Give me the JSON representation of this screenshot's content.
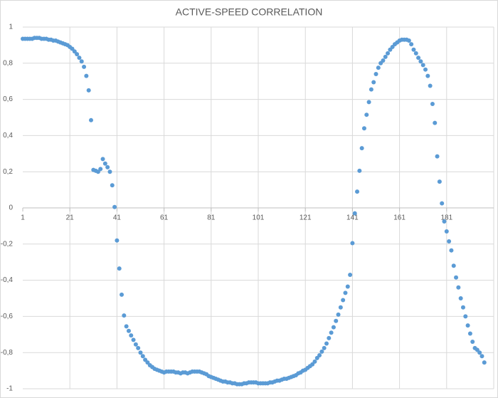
{
  "chart_data": {
    "type": "scatter",
    "title": "ACTIVE-SPEED CORRELATION",
    "color": "#5b9bd5",
    "grid": true,
    "xlim": [
      1,
      201
    ],
    "xticks": [
      1,
      21,
      41,
      61,
      81,
      101,
      121,
      141,
      161,
      181
    ],
    "ylim": [
      -1,
      1
    ],
    "yticks": [
      1,
      {
        "value": 0.8,
        "label": "0,8"
      },
      {
        "value": 0.6,
        "label": "0,6"
      },
      {
        "value": 0.4,
        "label": "0,4"
      },
      {
        "value": 0.2,
        "label": "0,2"
      },
      0,
      {
        "value": -0.2,
        "label": "-0,2"
      },
      {
        "value": -0.4,
        "label": "-0,4"
      },
      {
        "value": -0.6,
        "label": "-0,6"
      },
      {
        "value": -0.8,
        "label": "-0,8"
      },
      -1
    ],
    "x": [
      1,
      2,
      3,
      4,
      5,
      6,
      7,
      8,
      9,
      10,
      11,
      12,
      13,
      14,
      15,
      16,
      17,
      18,
      19,
      20,
      21,
      22,
      23,
      24,
      25,
      26,
      27,
      28,
      29,
      30,
      31,
      32,
      33,
      34,
      35,
      36,
      37,
      38,
      39,
      40,
      41,
      42,
      43,
      44,
      45,
      46,
      47,
      48,
      49,
      50,
      51,
      52,
      53,
      54,
      55,
      56,
      57,
      58,
      59,
      60,
      61,
      62,
      63,
      64,
      65,
      66,
      67,
      68,
      69,
      70,
      71,
      72,
      73,
      74,
      75,
      76,
      77,
      78,
      79,
      80,
      81,
      82,
      83,
      84,
      85,
      86,
      87,
      88,
      89,
      90,
      91,
      92,
      93,
      94,
      95,
      96,
      97,
      98,
      99,
      100,
      101,
      102,
      103,
      104,
      105,
      106,
      107,
      108,
      109,
      110,
      111,
      112,
      113,
      114,
      115,
      116,
      117,
      118,
      119,
      120,
      121,
      122,
      123,
      124,
      125,
      126,
      127,
      128,
      129,
      130,
      131,
      132,
      133,
      134,
      135,
      136,
      137,
      138,
      139,
      140,
      141,
      142,
      143,
      144,
      145,
      146,
      147,
      148,
      149,
      150,
      151,
      152,
      153,
      154,
      155,
      156,
      157,
      158,
      159,
      160,
      161,
      162,
      163,
      164,
      165,
      166,
      167,
      168,
      169,
      170,
      171,
      172,
      173,
      174,
      175,
      176,
      177,
      178,
      179,
      180,
      181,
      182,
      183,
      184,
      185,
      186,
      187,
      188,
      189,
      190,
      191,
      192,
      193,
      194,
      195,
      196,
      197
    ],
    "values": [
      0.935,
      0.935,
      0.935,
      0.935,
      0.935,
      0.94,
      0.94,
      0.94,
      0.935,
      0.935,
      0.935,
      0.93,
      0.93,
      0.925,
      0.925,
      0.92,
      0.915,
      0.91,
      0.905,
      0.9,
      0.89,
      0.88,
      0.865,
      0.85,
      0.83,
      0.81,
      0.78,
      0.73,
      0.65,
      0.485,
      0.21,
      0.205,
      0.2,
      0.215,
      0.27,
      0.245,
      0.225,
      0.2,
      0.125,
      0.005,
      -0.18,
      -0.335,
      -0.48,
      -0.595,
      -0.655,
      -0.68,
      -0.705,
      -0.73,
      -0.755,
      -0.775,
      -0.8,
      -0.82,
      -0.84,
      -0.855,
      -0.87,
      -0.88,
      -0.89,
      -0.895,
      -0.9,
      -0.905,
      -0.91,
      -0.905,
      -0.905,
      -0.905,
      -0.905,
      -0.91,
      -0.91,
      -0.915,
      -0.91,
      -0.91,
      -0.915,
      -0.91,
      -0.905,
      -0.905,
      -0.905,
      -0.905,
      -0.91,
      -0.915,
      -0.92,
      -0.93,
      -0.935,
      -0.94,
      -0.945,
      -0.95,
      -0.955,
      -0.96,
      -0.96,
      -0.965,
      -0.965,
      -0.97,
      -0.97,
      -0.975,
      -0.975,
      -0.975,
      -0.97,
      -0.97,
      -0.965,
      -0.965,
      -0.965,
      -0.965,
      -0.97,
      -0.97,
      -0.97,
      -0.97,
      -0.97,
      -0.965,
      -0.965,
      -0.96,
      -0.955,
      -0.955,
      -0.95,
      -0.945,
      -0.945,
      -0.94,
      -0.935,
      -0.93,
      -0.925,
      -0.915,
      -0.91,
      -0.9,
      -0.895,
      -0.885,
      -0.875,
      -0.865,
      -0.85,
      -0.83,
      -0.815,
      -0.795,
      -0.775,
      -0.75,
      -0.72,
      -0.69,
      -0.66,
      -0.625,
      -0.59,
      -0.55,
      -0.51,
      -0.47,
      -0.435,
      -0.37,
      -0.195,
      -0.03,
      0.09,
      0.205,
      0.33,
      0.44,
      0.515,
      0.585,
      0.655,
      0.695,
      0.74,
      0.775,
      0.8,
      0.815,
      0.835,
      0.855,
      0.875,
      0.89,
      0.905,
      0.915,
      0.925,
      0.93,
      0.93,
      0.93,
      0.925,
      0.905,
      0.875,
      0.855,
      0.83,
      0.81,
      0.79,
      0.765,
      0.73,
      0.675,
      0.575,
      0.47,
      0.285,
      0.145,
      0.025,
      -0.075,
      -0.13,
      -0.185,
      -0.235,
      -0.32,
      -0.385,
      -0.44,
      -0.5,
      -0.55,
      -0.6,
      -0.65,
      -0.695,
      -0.74,
      -0.775,
      -0.785,
      -0.8,
      -0.82,
      -0.855
    ]
  }
}
